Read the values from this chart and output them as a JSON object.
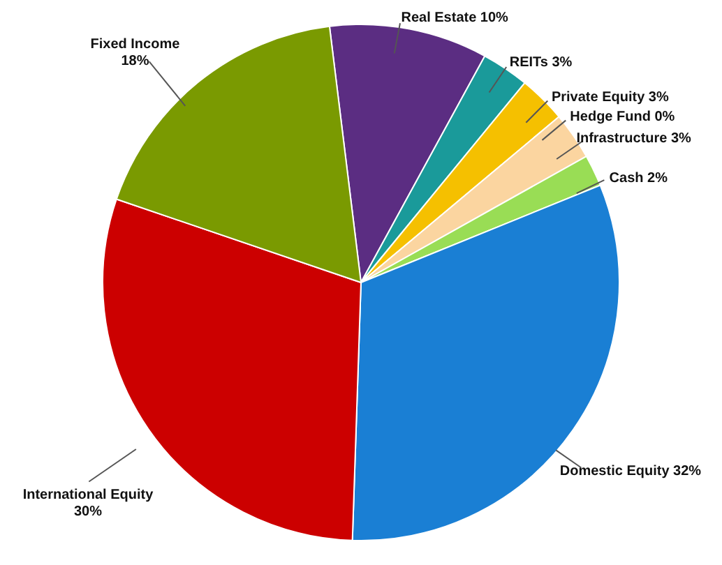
{
  "chart_data": {
    "type": "pie",
    "categories": [
      "Real Estate",
      "REITs",
      "Private Equity",
      "Hedge Fund",
      "Infrastructure",
      "Cash",
      "Domestic Equity",
      "International Equity",
      "Fixed Income"
    ],
    "values": [
      10,
      3,
      3,
      0,
      3,
      2,
      32,
      30,
      18
    ],
    "value_labels": [
      "10%",
      "3%",
      "3%",
      "0%",
      "3%",
      "2%",
      "32%",
      "30%",
      "18%"
    ],
    "colors": [
      "#5b2d82",
      "#1a9a9a",
      "#f5c000",
      "#a0b0d0",
      "#fbd5a0",
      "#99dd55",
      "#1a7fd4",
      "#cc0000",
      "#7a9a01"
    ]
  }
}
